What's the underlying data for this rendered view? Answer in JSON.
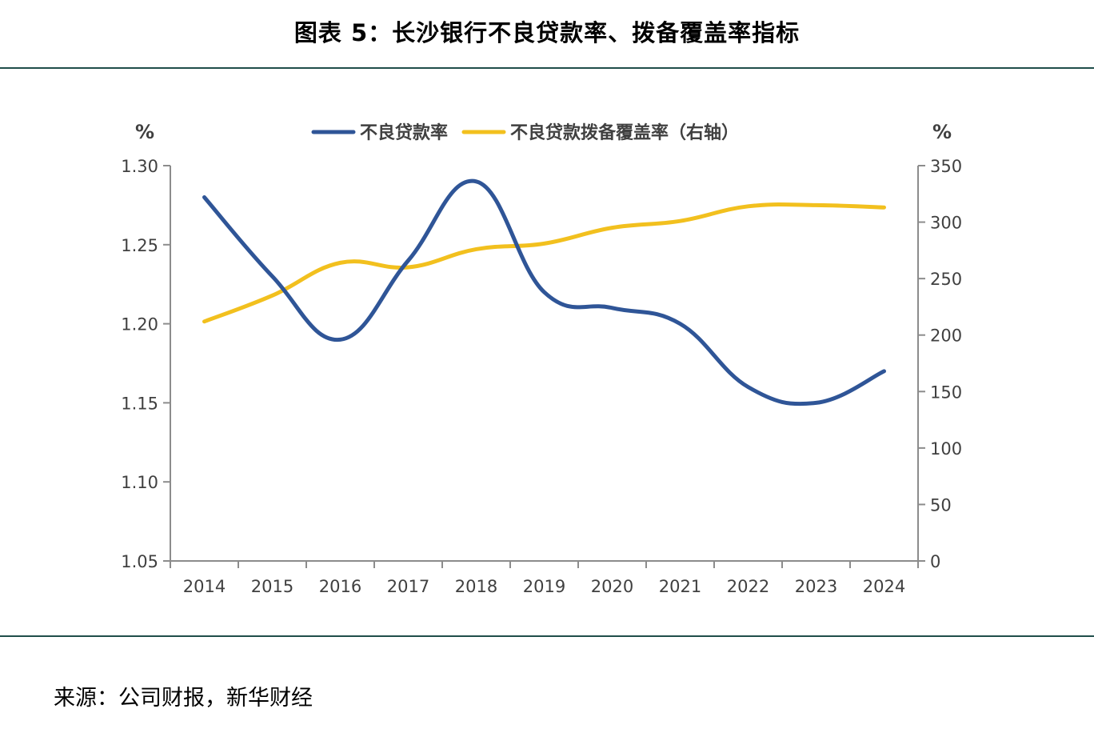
{
  "figure_title": "图表 5：长沙银行不良贷款率、拨备覆盖率指标",
  "source": "来源：公司财报，新华财经",
  "colors": {
    "npl": "#2f5597",
    "coverage": "#f2c01e",
    "axis": "#8c8c8c",
    "rule": "#1f4e4a",
    "tick_text": "#404040"
  },
  "chart_data": {
    "type": "line",
    "categories": [
      "2014",
      "2015",
      "2016",
      "2017",
      "2018",
      "2019",
      "2020",
      "2021",
      "2022",
      "2023",
      "2024"
    ],
    "left_axis_unit": "%",
    "right_axis_unit": "%",
    "ylim_left": [
      1.05,
      1.3
    ],
    "ylim_right": [
      0,
      350
    ],
    "yticks_left": [
      "1.30",
      "1.25",
      "1.20",
      "1.15",
      "1.10",
      "1.05"
    ],
    "yticks_left_values": [
      1.3,
      1.25,
      1.2,
      1.15,
      1.1,
      1.05
    ],
    "yticks_right": [
      "350",
      "300",
      "250",
      "200",
      "150",
      "100",
      "50",
      "0"
    ],
    "yticks_right_values": [
      350,
      300,
      250,
      200,
      150,
      100,
      50,
      0
    ],
    "series": [
      {
        "name": "不良贷款率",
        "axis": "left",
        "values": [
          1.28,
          1.23,
          1.19,
          1.24,
          1.29,
          1.22,
          1.21,
          1.2,
          1.16,
          1.15,
          1.17
        ]
      },
      {
        "name": "不良贷款拨备覆盖率（右轴）",
        "axis": "right",
        "values": [
          212,
          235,
          264,
          260,
          276,
          281,
          295,
          301,
          314,
          315,
          313
        ]
      }
    ],
    "legend_position": "top-center",
    "grid": false
  }
}
